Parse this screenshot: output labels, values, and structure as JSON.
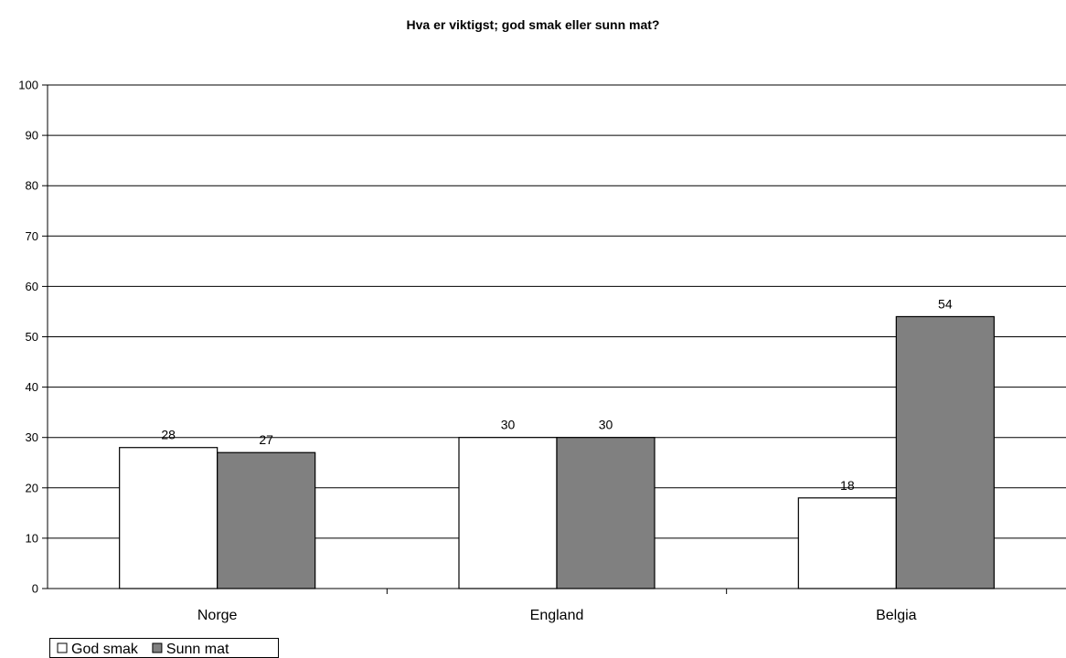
{
  "chart_data": {
    "type": "bar",
    "title": "Hva er viktigst; god smak eller sunn mat?",
    "categories": [
      "Norge",
      "England",
      "Belgia"
    ],
    "series": [
      {
        "name": "God smak",
        "values": [
          28,
          30,
          18
        ],
        "color": "#ffffff"
      },
      {
        "name": "Sunn mat",
        "values": [
          27,
          30,
          54
        ],
        "color": "#808080"
      }
    ],
    "ylim": [
      0,
      100
    ],
    "yticks": [
      "0",
      "10",
      "20",
      "30",
      "40",
      "50",
      "60",
      "70",
      "80",
      "90",
      "100"
    ],
    "grid": true,
    "legend_position": "bottom-left"
  }
}
